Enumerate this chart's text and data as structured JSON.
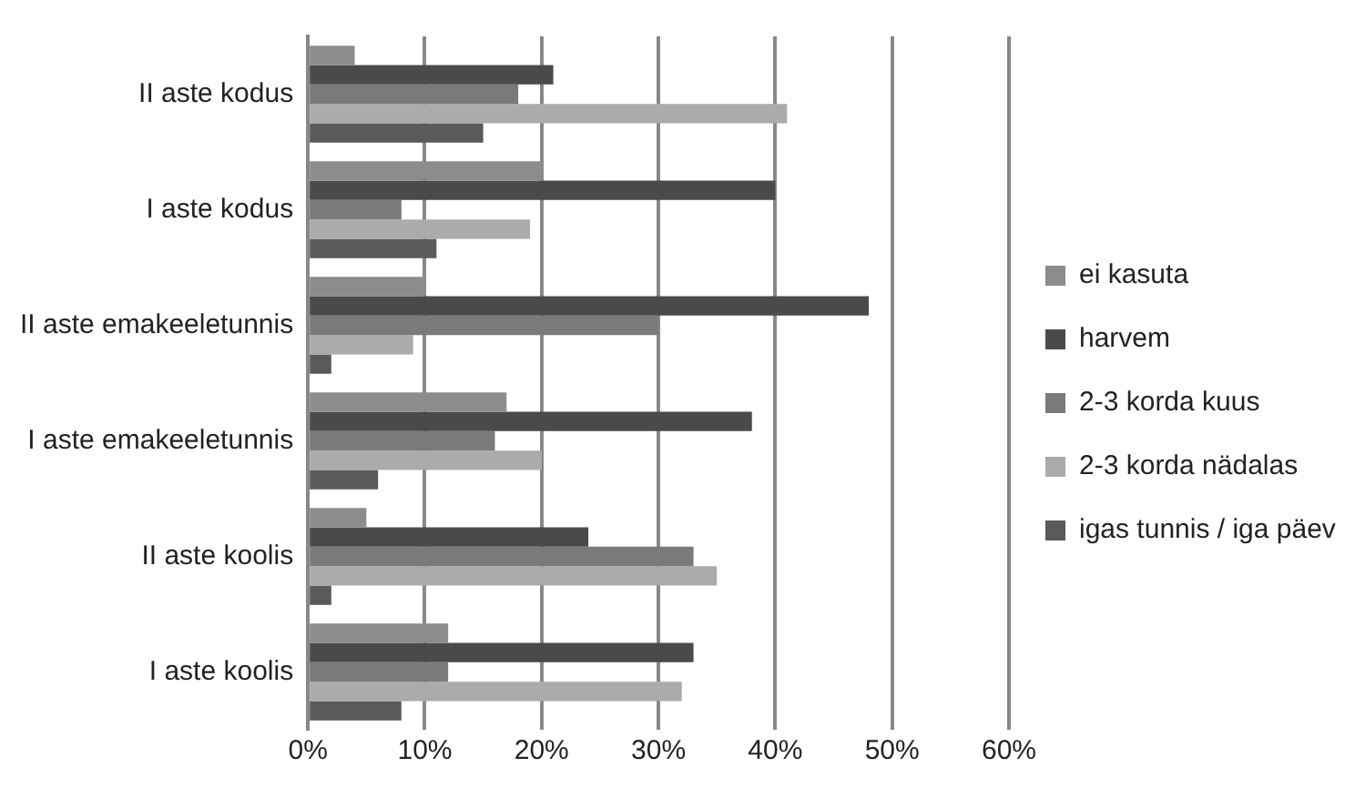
{
  "chart_data": {
    "type": "bar",
    "orientation": "horizontal",
    "categories": [
      "II aste kodus",
      "I aste kodus",
      "II aste emakeeletunnis",
      "I aste emakeeletunnis",
      "II aste koolis",
      "I aste koolis"
    ],
    "series": [
      {
        "name": "ei kasuta",
        "color": "#8c8c8c",
        "values": [
          4,
          20,
          10,
          17,
          5,
          12
        ]
      },
      {
        "name": "harvem",
        "color": "#4a4a4a",
        "values": [
          21,
          40,
          48,
          38,
          24,
          33
        ]
      },
      {
        "name": "2-3 korda kuus",
        "color": "#7a7a7a",
        "values": [
          18,
          8,
          30,
          16,
          33,
          12
        ]
      },
      {
        "name": "2-3 korda nädalas",
        "color": "#ababab",
        "values": [
          41,
          19,
          9,
          20,
          35,
          32
        ]
      },
      {
        "name": "igas tunnis / iga päev",
        "color": "#5a5a5a",
        "values": [
          15,
          11,
          2,
          6,
          2,
          8
        ]
      }
    ],
    "xlim": [
      0,
      60
    ],
    "xticks": [
      {
        "value": 0,
        "label": "0%"
      },
      {
        "value": 10,
        "label": "10%"
      },
      {
        "value": 20,
        "label": "20%"
      },
      {
        "value": 30,
        "label": "30%"
      },
      {
        "value": 40,
        "label": "40%"
      },
      {
        "value": 50,
        "label": "50%"
      },
      {
        "value": 60,
        "label": "60%"
      }
    ],
    "grid": "x",
    "legend": "right"
  }
}
